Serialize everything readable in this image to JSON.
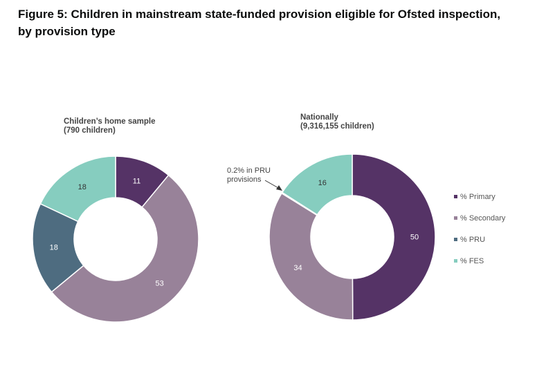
{
  "figure": {
    "title": "Figure 5: Children in mainstream state-funded provision eligible for Ofsted inspection, by provision type"
  },
  "colors": {
    "primary": "#553366",
    "secondary": "#988299",
    "pru": "#4e6c80",
    "fes": "#86cdbf"
  },
  "chart_data": {
    "type": "donut",
    "legend_placement": "right",
    "series_order": [
      "% Primary",
      "% Secondary",
      "% PRU",
      "% FES"
    ],
    "charts": [
      {
        "title_lines": [
          "Children’s home sample",
          "(790 children)"
        ],
        "values": {
          "% Primary": 11,
          "% Secondary": 53,
          "% PRU": 18,
          "% FES": 18
        },
        "labels": [
          "11",
          "53",
          "18",
          "18"
        ]
      },
      {
        "title_lines": [
          "Nationally",
          "(9,316,155 children)"
        ],
        "values": {
          "% Primary": 50,
          "% Secondary": 34,
          "% PRU": 0.2,
          "% FES": 16
        },
        "labels": [
          "50",
          "34",
          "",
          "16"
        ],
        "annotation_lines": [
          "0.2% in PRU",
          "provisions"
        ]
      }
    ]
  }
}
